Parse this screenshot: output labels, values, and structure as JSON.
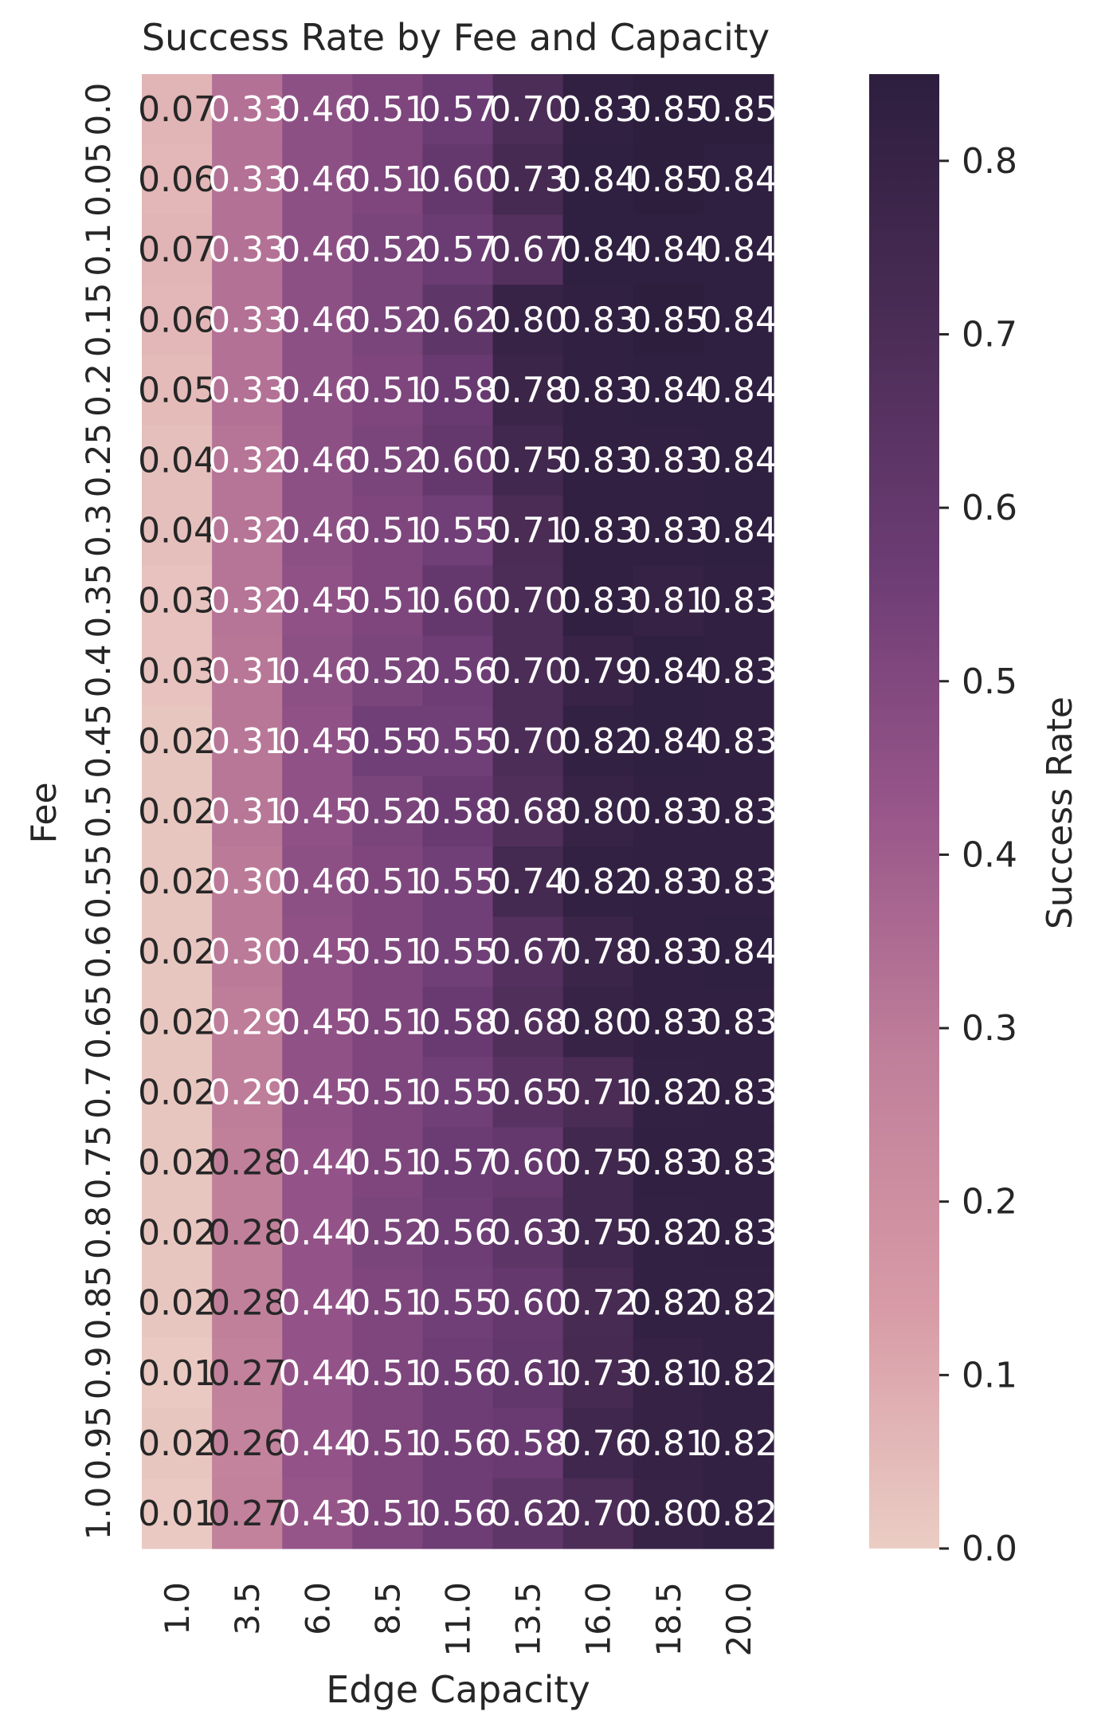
{
  "chart_data": {
    "type": "heatmap",
    "title": "Success Rate by Fee and Capacity",
    "xlabel": "Edge Capacity",
    "ylabel": "Fee",
    "x_categories": [
      "1.0",
      "3.5",
      "6.0",
      "8.5",
      "11.0",
      "13.5",
      "16.0",
      "18.5",
      "20.0"
    ],
    "y_categories": [
      "0.0",
      "0.05",
      "0.1",
      "0.15",
      "0.2",
      "0.25",
      "0.3",
      "0.35",
      "0.4",
      "0.45",
      "0.5",
      "0.55",
      "0.6",
      "0.65",
      "0.7",
      "0.75",
      "0.8",
      "0.85",
      "0.9",
      "0.95",
      "1.0"
    ],
    "values": [
      [
        0.07,
        0.33,
        0.46,
        0.51,
        0.57,
        0.7,
        0.83,
        0.85,
        0.85
      ],
      [
        0.06,
        0.33,
        0.46,
        0.51,
        0.6,
        0.73,
        0.84,
        0.85,
        0.84
      ],
      [
        0.07,
        0.33,
        0.46,
        0.52,
        0.57,
        0.67,
        0.84,
        0.84,
        0.84
      ],
      [
        0.06,
        0.33,
        0.46,
        0.52,
        0.62,
        0.8,
        0.83,
        0.85,
        0.84
      ],
      [
        0.05,
        0.33,
        0.46,
        0.51,
        0.58,
        0.78,
        0.83,
        0.84,
        0.84
      ],
      [
        0.04,
        0.32,
        0.46,
        0.52,
        0.6,
        0.75,
        0.83,
        0.83,
        0.84
      ],
      [
        0.04,
        0.32,
        0.46,
        0.51,
        0.55,
        0.71,
        0.83,
        0.83,
        0.84
      ],
      [
        0.03,
        0.32,
        0.45,
        0.51,
        0.6,
        0.7,
        0.83,
        0.81,
        0.83
      ],
      [
        0.03,
        0.31,
        0.46,
        0.52,
        0.56,
        0.7,
        0.79,
        0.84,
        0.83
      ],
      [
        0.02,
        0.31,
        0.45,
        0.55,
        0.55,
        0.7,
        0.82,
        0.84,
        0.83
      ],
      [
        0.02,
        0.31,
        0.45,
        0.52,
        0.58,
        0.68,
        0.8,
        0.83,
        0.83
      ],
      [
        0.02,
        0.3,
        0.46,
        0.51,
        0.55,
        0.74,
        0.82,
        0.83,
        0.83
      ],
      [
        0.02,
        0.3,
        0.45,
        0.51,
        0.55,
        0.67,
        0.78,
        0.83,
        0.84
      ],
      [
        0.02,
        0.29,
        0.45,
        0.51,
        0.58,
        0.68,
        0.8,
        0.83,
        0.83
      ],
      [
        0.02,
        0.29,
        0.45,
        0.51,
        0.55,
        0.65,
        0.71,
        0.82,
        0.83
      ],
      [
        0.02,
        0.28,
        0.44,
        0.51,
        0.57,
        0.6,
        0.75,
        0.83,
        0.83
      ],
      [
        0.02,
        0.28,
        0.44,
        0.52,
        0.56,
        0.63,
        0.75,
        0.82,
        0.83
      ],
      [
        0.02,
        0.28,
        0.44,
        0.51,
        0.55,
        0.6,
        0.72,
        0.82,
        0.82
      ],
      [
        0.01,
        0.27,
        0.44,
        0.51,
        0.56,
        0.61,
        0.73,
        0.81,
        0.82
      ],
      [
        0.02,
        0.26,
        0.44,
        0.51,
        0.56,
        0.58,
        0.76,
        0.81,
        0.82
      ],
      [
        0.01,
        0.27,
        0.43,
        0.51,
        0.56,
        0.62,
        0.7,
        0.8,
        0.82
      ]
    ],
    "value_format_decimals": 2,
    "colorbar": {
      "label": "Success Rate",
      "ticks": [
        "0.0",
        "0.1",
        "0.2",
        "0.3",
        "0.4",
        "0.5",
        "0.6",
        "0.7",
        "0.8"
      ],
      "range": [
        0.0,
        0.85
      ]
    },
    "colormap": [
      "#ebcdc4",
      "#d79aa6",
      "#c07f9a",
      "#98568a",
      "#6c3c74",
      "#4a2c55",
      "#2d1e3e"
    ],
    "grid": false,
    "legend": "colorbar-right"
  }
}
